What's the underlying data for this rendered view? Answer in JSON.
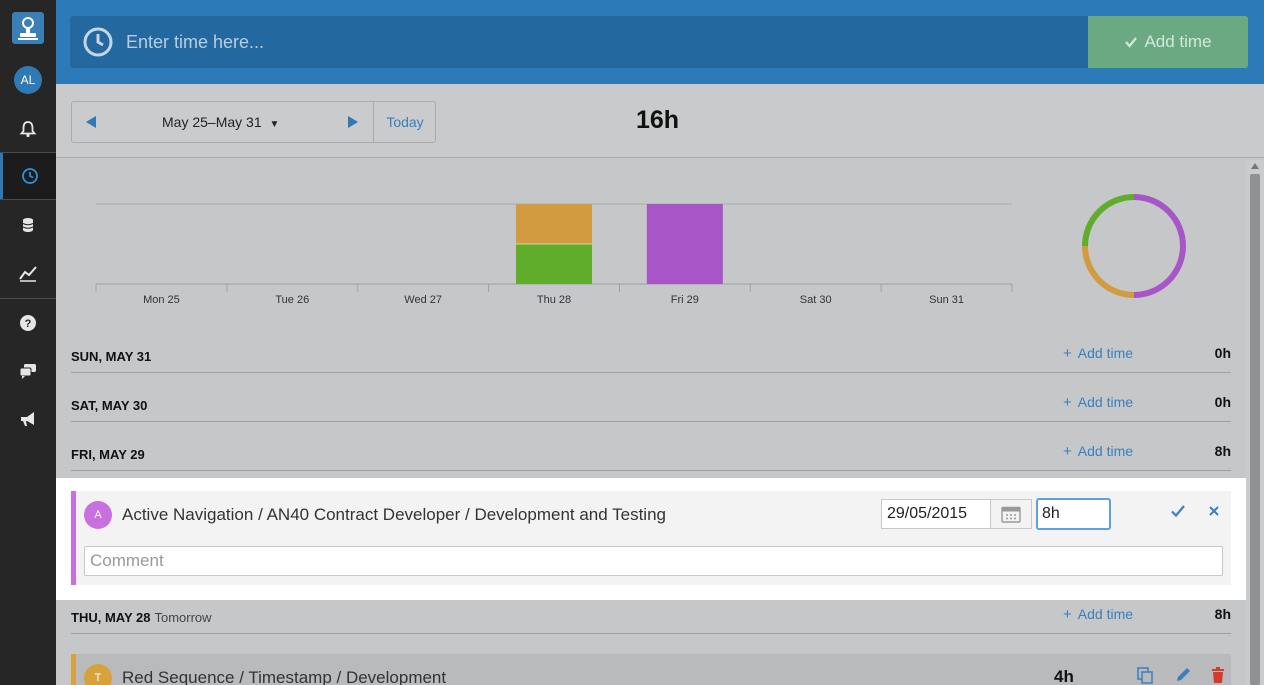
{
  "sidebar": {
    "avatar_initials": "AL",
    "icons": [
      "logo-icon",
      "bell-icon",
      "clock-icon",
      "database-icon",
      "chart-icon",
      "help-icon",
      "chat-icon",
      "megaphone-icon"
    ],
    "accent": "#2f79b4"
  },
  "topbar": {
    "time_placeholder": "Enter time here...",
    "add_time_label": "Add time"
  },
  "week": {
    "range": "May 25–May 31",
    "today_label": "Today",
    "total": "16h"
  },
  "chart_data": {
    "type": "bar",
    "stacked": true,
    "categories": [
      "Mon 25",
      "Tue 26",
      "Wed 27",
      "Thu 28",
      "Fri 29",
      "Sat 30",
      "Sun 31"
    ],
    "series": [
      {
        "color": "#5fad2b",
        "values": [
          0,
          0,
          0,
          4,
          0,
          0,
          0
        ]
      },
      {
        "color": "#d39b3f",
        "values": [
          0,
          0,
          0,
          4,
          0,
          0,
          0
        ]
      },
      {
        "color": "#a855c8",
        "values": [
          0,
          0,
          0,
          0,
          8,
          0,
          0
        ]
      }
    ],
    "ylim": [
      0,
      8
    ],
    "grid": true,
    "legend": "none"
  },
  "donut_data": {
    "type": "pie",
    "slices": [
      {
        "color": "#a855c8",
        "value": 8
      },
      {
        "color": "#d39b3f",
        "value": 4
      },
      {
        "color": "#5fad2b",
        "value": 4
      }
    ]
  },
  "days": [
    {
      "label": "SUN, MAY 31",
      "sub": "",
      "add_label": "Add time",
      "total": "0h"
    },
    {
      "label": "SAT, MAY 30",
      "sub": "",
      "add_label": "Add time",
      "total": "0h"
    },
    {
      "label": "FRI, MAY 29",
      "sub": "",
      "add_label": "Add time",
      "total": "8h"
    },
    {
      "label": "THU, MAY 28",
      "sub": "Tomorrow",
      "add_label": "Add time",
      "total": "8h"
    }
  ],
  "edit": {
    "avatar": "A",
    "title": "Active Navigation / AN40 Contract Developer / Development and Testing",
    "date": "29/05/2015",
    "hours": "8h",
    "comment_placeholder": "Comment",
    "color": "#c970e0"
  },
  "entry": {
    "avatar": "T",
    "title": "Red Sequence / Timestamp / Development",
    "hours": "4h",
    "color": "#d7a23c"
  }
}
